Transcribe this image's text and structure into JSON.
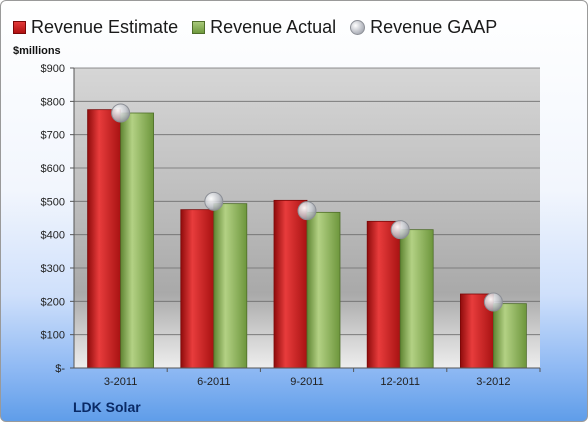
{
  "legend": {
    "estimate": "Revenue Estimate",
    "actual": "Revenue Actual",
    "gaap": "Revenue GAAP"
  },
  "units_label": "$millions",
  "company": "LDK Solar",
  "colors": {
    "estimate": "#cc1f1f",
    "actual": "#8db35a",
    "gaap": "#c4c7cc"
  },
  "chart_data": {
    "type": "bar",
    "title": "",
    "xlabel": "",
    "ylabel": "$millions",
    "categories": [
      "3-2011",
      "6-2011",
      "9-2011",
      "12-2011",
      "3-2012"
    ],
    "series": [
      {
        "name": "Revenue Estimate",
        "values": [
          775,
          475,
          503,
          440,
          222
        ]
      },
      {
        "name": "Revenue Actual",
        "values": [
          765,
          493,
          467,
          415,
          193
        ]
      },
      {
        "name": "Revenue GAAP",
        "values": [
          765,
          500,
          472,
          415,
          198
        ]
      }
    ],
    "ylim": [
      0,
      900
    ],
    "yticks": [
      0,
      100,
      200,
      300,
      400,
      500,
      600,
      700,
      800,
      900
    ],
    "ytick_labels": [
      "$-",
      "$100",
      "$200",
      "$300",
      "$400",
      "$500",
      "$600",
      "$700",
      "$800",
      "$900"
    ],
    "grid": true,
    "legend_position": "top"
  }
}
